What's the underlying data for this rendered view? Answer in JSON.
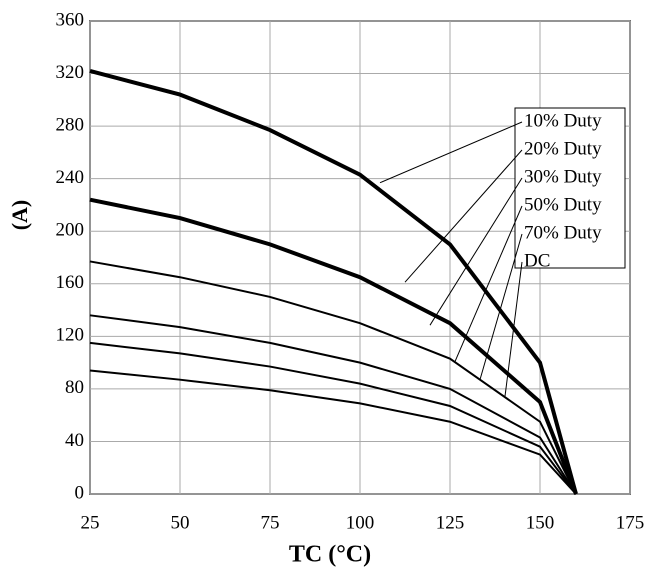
{
  "chart_data": {
    "type": "line",
    "x_label": "TC (°C)",
    "y_label": "(A)",
    "x": [
      25,
      50,
      75,
      100,
      125,
      150,
      160
    ],
    "series": [
      {
        "name": "10% Duty",
        "color": "#000000",
        "values": [
          322,
          304,
          277,
          243,
          190,
          100,
          0
        ]
      },
      {
        "name": "20% Duty",
        "color": "#000000",
        "values": [
          224,
          210,
          190,
          165,
          130,
          70,
          0
        ]
      },
      {
        "name": "30% Duty",
        "color": "#000000",
        "values": [
          177,
          165,
          150,
          130,
          103,
          55,
          0
        ]
      },
      {
        "name": "50% Duty",
        "color": "#000000",
        "values": [
          136,
          127,
          115,
          100,
          80,
          43,
          0
        ]
      },
      {
        "name": "70% Duty",
        "color": "#000000",
        "values": [
          115,
          107,
          97,
          84,
          67,
          36,
          0
        ]
      },
      {
        "name": "DC",
        "color": "#000000",
        "values": [
          94,
          87,
          79,
          69,
          55,
          30,
          0
        ]
      }
    ],
    "xlim": [
      25,
      175
    ],
    "xticks": [
      25,
      50,
      75,
      100,
      125,
      150,
      175
    ],
    "ylim": [
      0,
      360
    ],
    "yticks": [
      0,
      40,
      80,
      120,
      160,
      200,
      240,
      280,
      320,
      360
    ],
    "grid": true
  }
}
